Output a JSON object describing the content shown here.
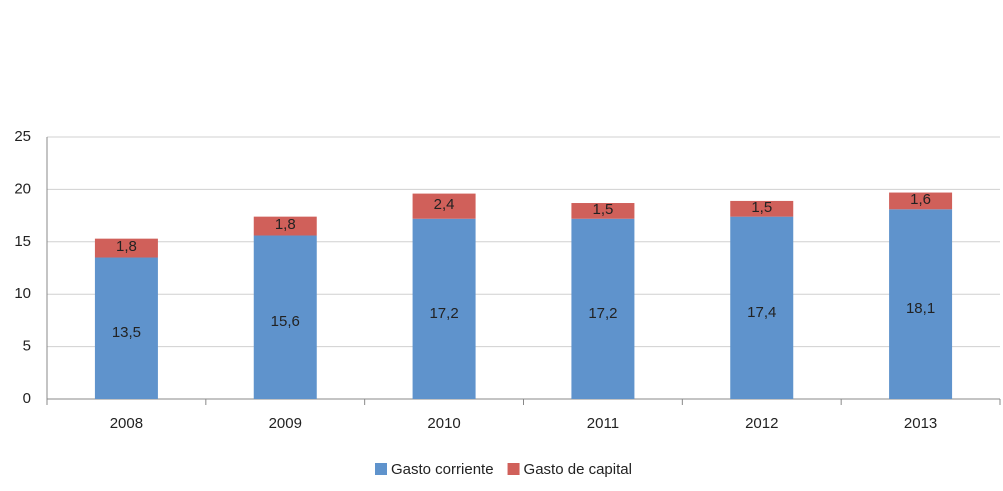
{
  "chart_data": {
    "type": "stacked_bar",
    "categories": [
      "2008",
      "2009",
      "2010",
      "2011",
      "2012",
      "2013"
    ],
    "series": [
      {
        "name": "Gasto corriente",
        "color": "#5f93cc",
        "values": [
          13.5,
          15.6,
          17.2,
          17.2,
          17.4,
          18.1
        ],
        "value_labels": [
          "13,5",
          "15,6",
          "17,2",
          "17,2",
          "17,4",
          "18,1"
        ]
      },
      {
        "name": "Gasto de capital",
        "color": "#d0605a",
        "values": [
          1.8,
          1.8,
          2.4,
          1.5,
          1.5,
          1.6
        ],
        "value_labels": [
          "1,8",
          "1,8",
          "2,4",
          "1,5",
          "1,5",
          "1,6"
        ]
      }
    ],
    "ylim": [
      0,
      25
    ],
    "yticks": [
      0,
      5,
      10,
      15,
      20,
      25
    ],
    "grid": true,
    "legend": "bottom"
  }
}
